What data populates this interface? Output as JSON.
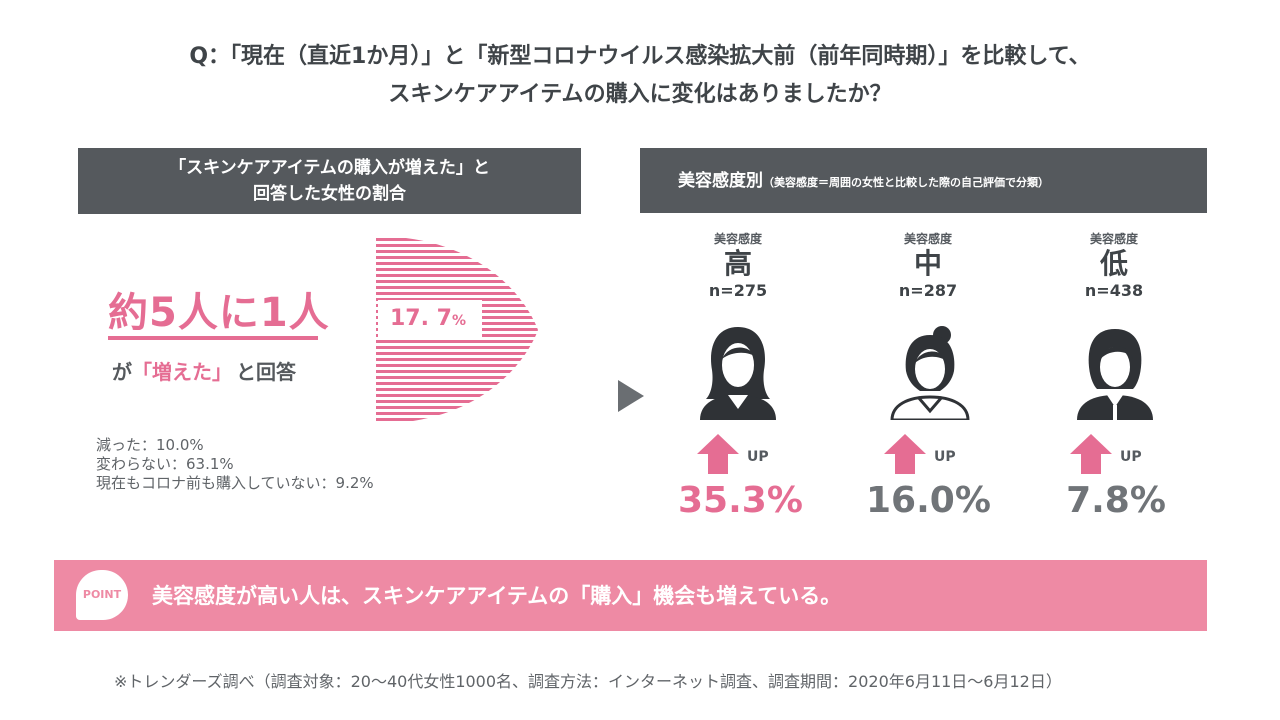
{
  "question": {
    "line1": "Q：「現在（直近1か月）」と「新型コロナウイルス感染拡大前（前年同時期）」を比較して、",
    "line2": "スキンケアアイテムの購入に変化はありましたか？"
  },
  "left": {
    "header_line1": "「スキンケアアイテムの購入が増えた」と",
    "header_line2": "回答した女性の割合",
    "headline": "約5人に1人",
    "sub_prefix": "が",
    "sub_highlight": "「増えた」",
    "sub_suffix": "と回答",
    "percent_value": "17. 7",
    "percent_unit": "%",
    "notes": [
      "減った：10.0%",
      "変わらない：63.1%",
      "現在もコロナ前も購入していない：9.2%"
    ]
  },
  "right": {
    "header_main": "美容感度別",
    "header_sub": "（美容感度＝周囲の女性と比較した際の自己評価で分類）",
    "groups": [
      {
        "label": "美容感度",
        "level": "高",
        "n": "n=275",
        "up": "UP",
        "value": "35.3%",
        "color": "#e56d93"
      },
      {
        "label": "美容感度",
        "level": "中",
        "n": "n=287",
        "up": "UP",
        "value": "16.0%",
        "color": "#707478"
      },
      {
        "label": "美容感度",
        "level": "低",
        "n": "n=438",
        "up": "UP",
        "value": "7.8%",
        "color": "#707478"
      }
    ]
  },
  "point": {
    "badge": "POINT",
    "text": "美容感度が高い人は、スキンケアアイテムの「購入」機会も増えている。"
  },
  "footnote": "※トレンダーズ調べ（調査対象：20～40代女性1000名、調査方法：インターネット調査、調査期間：2020年6月11日～6月12日）"
}
